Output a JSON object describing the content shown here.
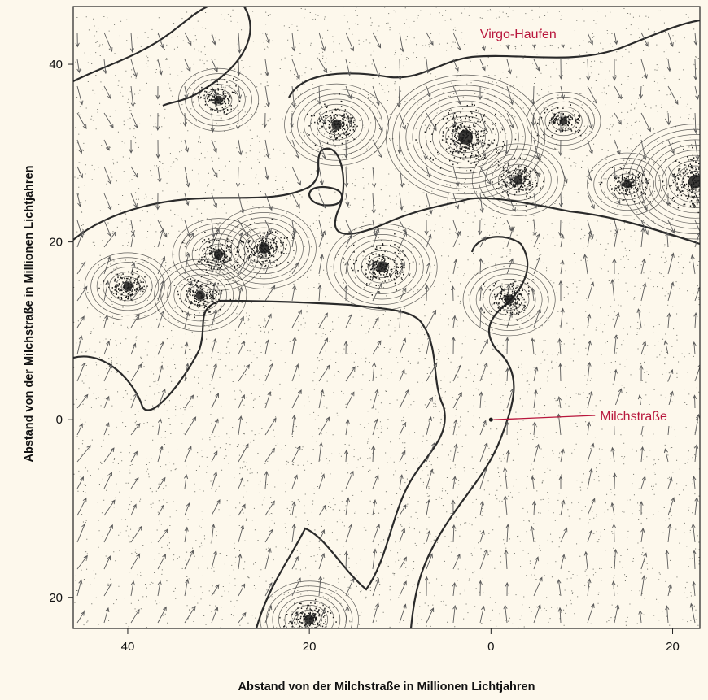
{
  "chart_data": {
    "type": "scatter",
    "xlabel": "Abstand von der Milchstraße in Millionen Lichtjahren",
    "ylabel": "Abstand von der Milchstraße in Millionen Lichtjahren",
    "xlim": [
      46,
      -23
    ],
    "ylim": [
      -23.5,
      46.5
    ],
    "x_ticks": [
      40,
      20,
      0,
      -20
    ],
    "x_tick_labels": [
      "40",
      "20",
      "0",
      "20"
    ],
    "y_ticks": [
      40,
      20,
      0,
      -20
    ],
    "y_tick_labels": [
      "40",
      "20",
      "0",
      "20"
    ],
    "annotations": [
      {
        "text": "Virgo-Haufen",
        "x": -3.0,
        "y": 43.5
      },
      {
        "text": "Milchstraße",
        "x": -12.0,
        "y": 0.2,
        "pointer_x": 0.0,
        "pointer_y": 0.0
      }
    ],
    "clusters": [
      {
        "x": 2.8,
        "y": 31.8,
        "strength": 1.0
      },
      {
        "x": -22.5,
        "y": 26.8,
        "strength": 0.9
      },
      {
        "x": 17.0,
        "y": 33.2,
        "strength": 0.55
      },
      {
        "x": 12.0,
        "y": 17.2,
        "strength": 0.6
      },
      {
        "x": 25.0,
        "y": 19.3,
        "strength": 0.55
      },
      {
        "x": 30.0,
        "y": 18.6,
        "strength": 0.45
      },
      {
        "x": 32.0,
        "y": 14.0,
        "strength": 0.45
      },
      {
        "x": 40.0,
        "y": 15.0,
        "strength": 0.4
      },
      {
        "x": -2.0,
        "y": 13.5,
        "strength": 0.45
      },
      {
        "x": 30.0,
        "y": 36.0,
        "strength": 0.35
      },
      {
        "x": -3.0,
        "y": 27.0,
        "strength": 0.45
      },
      {
        "x": -15.0,
        "y": 26.5,
        "strength": 0.35
      },
      {
        "x": -8.0,
        "y": 33.6,
        "strength": 0.3
      },
      {
        "x": 20.0,
        "y": -22.5,
        "strength": 0.5
      }
    ],
    "colors": {
      "background": "#fdf8ec",
      "ink": "#1a1a1a",
      "annotation": "#b8163c"
    }
  }
}
